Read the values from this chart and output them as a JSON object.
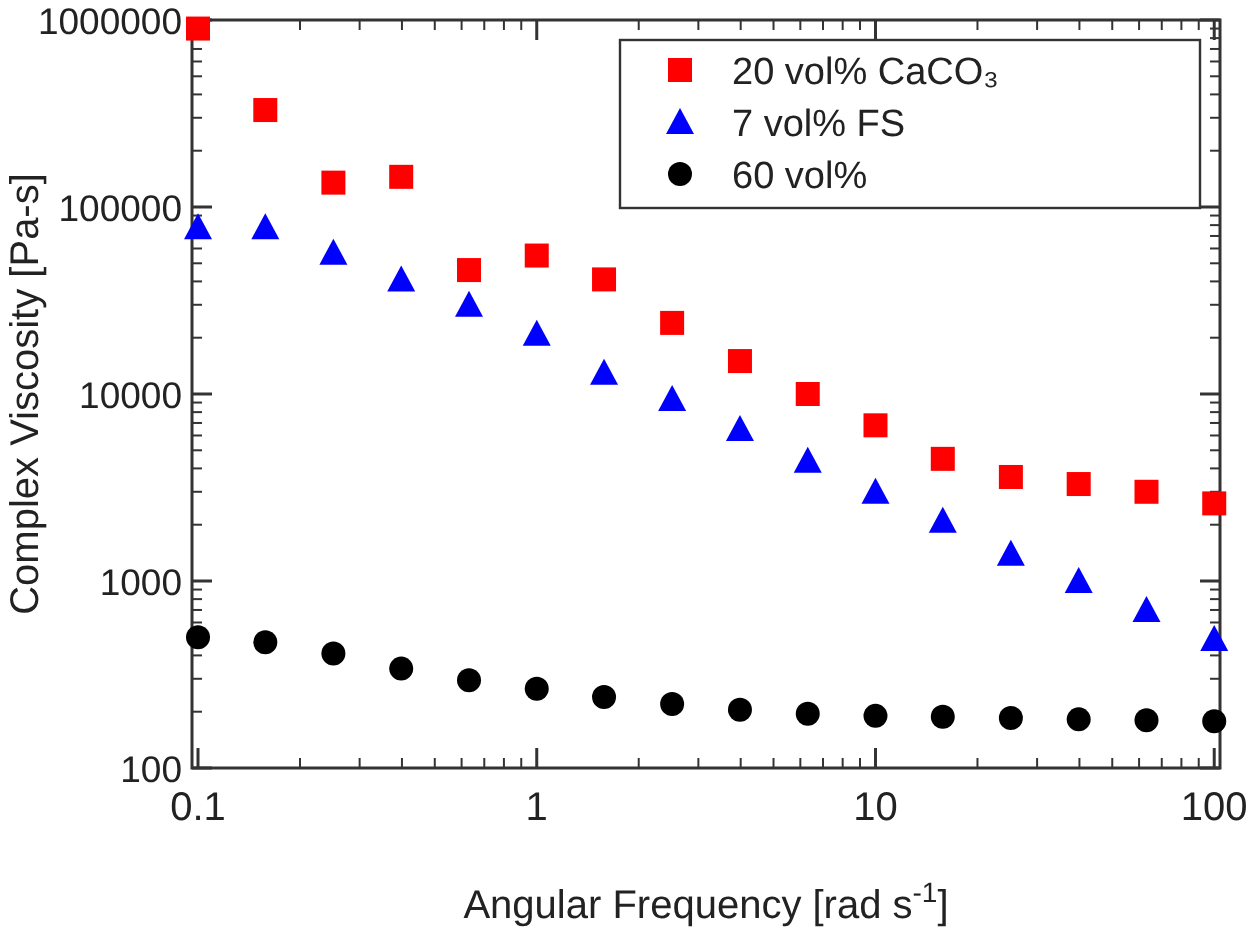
{
  "chart_data": {
    "type": "scatter",
    "xlabel": "Angular Frequency [rad s$^{-1}$]",
    "ylabel": "Complex Viscosity [Pa-s]",
    "log": "xy",
    "grid": false,
    "legend": "top right",
    "x": [
      0.1,
      0.158,
      0.251,
      0.398,
      0.631,
      1,
      1.58,
      2.51,
      3.98,
      6.31,
      10,
      15.8,
      25.1,
      39.8,
      63.1,
      100
    ],
    "xlim": [
      0.096,
      104
    ],
    "ylim": [
      100,
      1000000
    ],
    "xticks": [
      0.1,
      1,
      10,
      100
    ],
    "yticks": [
      100,
      1000,
      10000,
      100000,
      1000000
    ],
    "series": [
      {
        "name": "20 vol% CaCO₃",
        "color": "#ff0000",
        "marker": "square",
        "values": [
          900000,
          330000,
          135000,
          145000,
          46000,
          55000,
          41000,
          24000,
          15000,
          10000,
          6800,
          4500,
          3600,
          3300,
          3000,
          2600
        ]
      },
      {
        "name": "7 vol% FS",
        "color": "#0000ff",
        "marker": "triangle",
        "values": [
          78000,
          78000,
          57000,
          41000,
          30000,
          21000,
          13000,
          9400,
          6500,
          4400,
          3000,
          2100,
          1400,
          1000,
          700,
          490
        ]
      },
      {
        "name": "60 vol%",
        "color": "#000000",
        "marker": "circle",
        "values": [
          500,
          470,
          410,
          340,
          295,
          265,
          240,
          220,
          205,
          195,
          190,
          188,
          185,
          182,
          180,
          178
        ]
      }
    ]
  }
}
